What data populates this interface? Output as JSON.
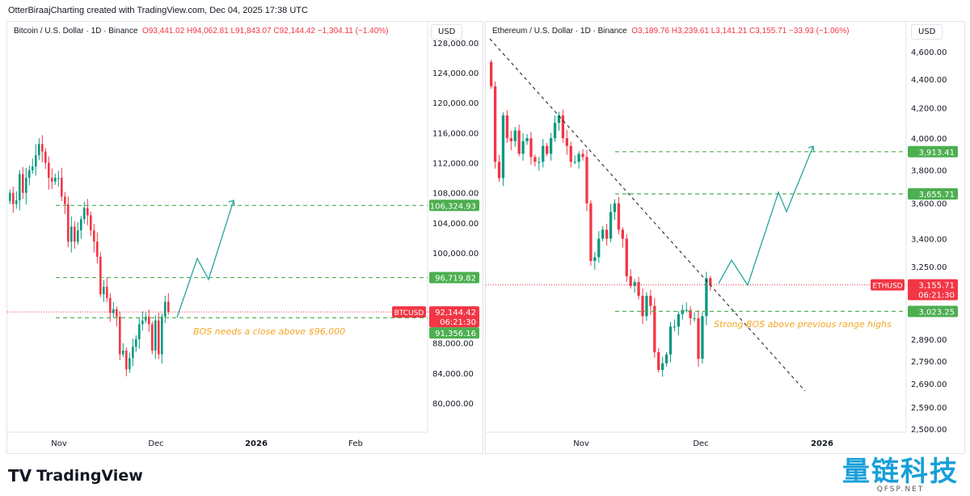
{
  "credit": "OtterBiraajCharting created with TradingView.com, Dec 04, 2025 17:38 UTC",
  "footer": {
    "logo": "TradingView",
    "watermark": "量链科技",
    "watermark_sub": "QFSP.NET"
  },
  "colors": {
    "up": "#089981",
    "down": "#f23645",
    "level": "#4caf50",
    "projection": "#26a69a",
    "annotation": "#f5a623"
  },
  "chart_data": [
    {
      "type": "candlestick",
      "symbol": "BTCUSD",
      "title": "Bitcoin / U.S. Dollar · 1D · Binance",
      "ohlc": {
        "o": "O93,441.02",
        "h": "H94,062.81",
        "l": "L91,843.07",
        "c": "C92,144.42",
        "chg": "−1,304.11 (−1.40%)"
      },
      "currency": "USD",
      "ylim": [
        78000,
        128000
      ],
      "yticks": [
        "128,000.00",
        "124,000.00",
        "120,000.00",
        "116,000.00",
        "112,000.00",
        "108,000.00",
        "104,000.00",
        "100,000.00",
        "88,000.00",
        "84,000.00",
        "80,000.00"
      ],
      "ytick_values": [
        128000,
        124000,
        120000,
        116000,
        112000,
        108000,
        104000,
        100000,
        88000,
        84000,
        80000
      ],
      "xticks": [
        "Nov",
        "Dec",
        "2026",
        "Feb"
      ],
      "start_date": "Oct 16",
      "closes": [
        108000,
        106500,
        107000,
        110500,
        108000,
        110000,
        111000,
        111500,
        113000,
        114500,
        113500,
        112000,
        110000,
        109500,
        110000,
        110000,
        107500,
        106500,
        101500,
        103500,
        101500,
        103000,
        104500,
        106000,
        105000,
        103000,
        101500,
        99500,
        94500,
        95500,
        94000,
        92000,
        92500,
        91500,
        86500,
        87000,
        84500,
        86000,
        87500,
        88500,
        90500,
        91000,
        91500,
        90500,
        87000,
        91000,
        86500,
        91500,
        93500,
        92144
      ],
      "levels": [
        {
          "label": "106,324.93",
          "value": 106324.93
        },
        {
          "label": "96,719.82",
          "value": 96719.82
        },
        {
          "label": "91,356.16",
          "value": 91356.16
        }
      ],
      "price_label": {
        "symbol": "BTCUSD",
        "value": "92,144.42",
        "countdown": "06:21:30",
        "v": 92144.42
      },
      "annotation": "BOS needs a close above $96,000"
    },
    {
      "type": "candlestick",
      "symbol": "ETHUSD",
      "title": "Ethereum / U.S. Dollar · 1D · Binance",
      "ohlc": {
        "o": "O3,189.76",
        "h": "H3,239.61",
        "l": "L3,141.21",
        "c": "C3,155.71",
        "chg": "−33.93 (−1.06%)"
      },
      "currency": "USD",
      "scale": "log",
      "ylim": [
        2500,
        4600
      ],
      "yticks": [
        "4,600.00",
        "4,400.00",
        "4,200.00",
        "4,000.00",
        "3,800.00",
        "3,600.00",
        "3,400.00",
        "3,250.00",
        "2,890.00",
        "2,790.00",
        "2,690.00",
        "2,590.00",
        "2,500.00"
      ],
      "ytick_values": [
        4600,
        4400,
        4200,
        4000,
        3800,
        3600,
        3400,
        3250,
        2890,
        2790,
        2690,
        2590,
        2500
      ],
      "xticks": [
        "Nov",
        "Dec",
        "2026"
      ],
      "start_date": "Oct 9",
      "closes": [
        4350,
        3850,
        3750,
        4150,
        4000,
        3980,
        4050,
        3900,
        3980,
        4000,
        3880,
        3850,
        3850,
        3950,
        3900,
        4000,
        4100,
        4150,
        4000,
        3950,
        3850,
        3850,
        3900,
        3880,
        3600,
        3280,
        3300,
        3400,
        3450,
        3400,
        3550,
        3600,
        3450,
        3400,
        3200,
        3150,
        3170,
        3100,
        3000,
        3100,
        3050,
        2830,
        2750,
        2780,
        2820,
        2950,
        2950,
        3010,
        3030,
        3030,
        2990,
        2990,
        2800,
        3000,
        3190,
        3155.71
      ],
      "levels": [
        {
          "label": "3,913.41",
          "value": 3913.41
        },
        {
          "label": "3,655.71",
          "value": 3655.71
        },
        {
          "label": "3,023.25",
          "value": 3023.25
        }
      ],
      "price_label": {
        "symbol": "ETHUSD",
        "value": "3,155.71",
        "countdown": "06:21:30",
        "v": 3155.71
      },
      "annotation": "Strong BOS above previous range highs"
    }
  ]
}
